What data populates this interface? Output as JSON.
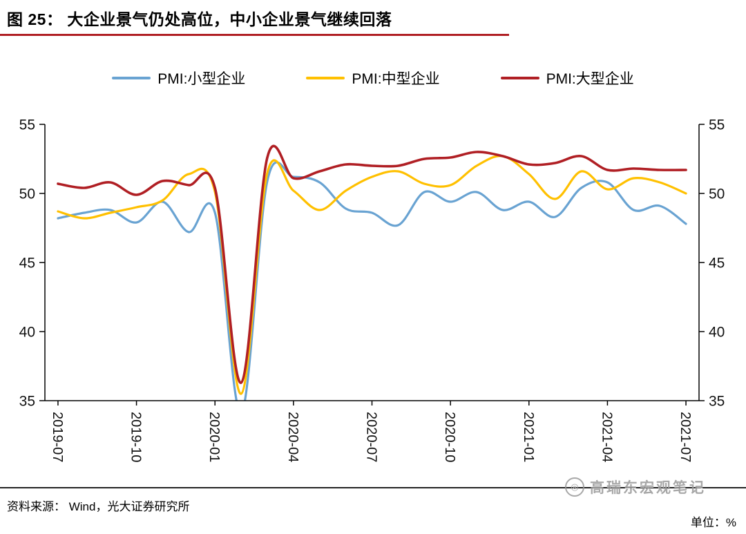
{
  "title": "图 25： 大企业景气仍处高位，中小企业景气继续回落",
  "accent_color": "#b01f24",
  "chart_data": {
    "type": "line",
    "smooth": true,
    "grid": false,
    "legend_position": "top",
    "x": [
      "2019-07",
      "2019-08",
      "2019-09",
      "2019-10",
      "2019-11",
      "2019-12",
      "2020-01",
      "2020-02",
      "2020-03",
      "2020-04",
      "2020-05",
      "2020-06",
      "2020-07",
      "2020-08",
      "2020-09",
      "2020-10",
      "2020-11",
      "2020-12",
      "2021-01",
      "2021-02",
      "2021-03",
      "2021-04",
      "2021-05",
      "2021-06",
      "2021-07"
    ],
    "xtick_every": 3,
    "ylim": [
      35,
      55
    ],
    "yticks": [
      35,
      40,
      45,
      50,
      55
    ],
    "series": [
      {
        "name": "PMI:小型企业",
        "color": "#69a3d2",
        "width": 3.2,
        "values": [
          48.2,
          48.6,
          48.8,
          47.9,
          49.4,
          47.2,
          48.6,
          34.1,
          50.9,
          51.2,
          50.8,
          48.9,
          48.6,
          47.7,
          50.1,
          49.4,
          50.1,
          48.8,
          49.4,
          48.3,
          50.4,
          50.8,
          48.8,
          49.1,
          47.8
        ]
      },
      {
        "name": "PMI:中型企业",
        "color": "#ffc000",
        "width": 3.2,
        "values": [
          48.7,
          48.2,
          48.6,
          49.0,
          49.5,
          51.4,
          50.1,
          35.5,
          51.5,
          50.2,
          48.8,
          50.2,
          51.2,
          51.6,
          50.7,
          50.6,
          52.0,
          52.7,
          51.4,
          49.6,
          51.6,
          50.3,
          51.1,
          50.8,
          50.0
        ]
      },
      {
        "name": "PMI:大型企业",
        "color": "#b01f24",
        "width": 3.6,
        "values": [
          50.7,
          50.4,
          50.8,
          49.9,
          50.9,
          50.6,
          50.4,
          36.3,
          52.6,
          51.1,
          51.6,
          52.1,
          52.0,
          52.0,
          52.5,
          52.6,
          53.0,
          52.7,
          52.1,
          52.2,
          52.7,
          51.7,
          51.8,
          51.7,
          51.7
        ]
      }
    ]
  },
  "footer": {
    "source": "资料来源： Wind，光大证券研究所",
    "unit": "单位：%"
  },
  "watermark": "高瑞东宏观笔记"
}
